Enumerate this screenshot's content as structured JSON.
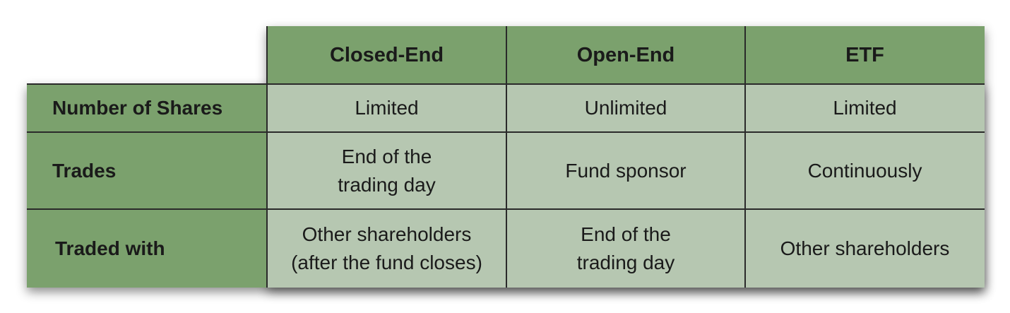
{
  "table": {
    "columns": [
      "Closed-End",
      "Open-End",
      "ETF"
    ],
    "rows": [
      {
        "label": "Number of Shares",
        "cells": [
          [
            "Limited"
          ],
          [
            "Unlimited"
          ],
          [
            "Limited"
          ]
        ]
      },
      {
        "label": "Trades",
        "cells": [
          [
            "End of the",
            "trading day"
          ],
          [
            "Fund sponsor"
          ],
          [
            "Continuously"
          ]
        ]
      },
      {
        "label": "Traded with",
        "cells": [
          [
            "Other shareholders",
            "(after the fund closes)"
          ],
          [
            "End of the",
            "trading day"
          ],
          [
            "Other shareholders"
          ]
        ]
      }
    ]
  },
  "colors": {
    "header_green": "#7ba16d",
    "cell_green": "#b6c7b1",
    "grid_line": "#2a2a2a"
  }
}
